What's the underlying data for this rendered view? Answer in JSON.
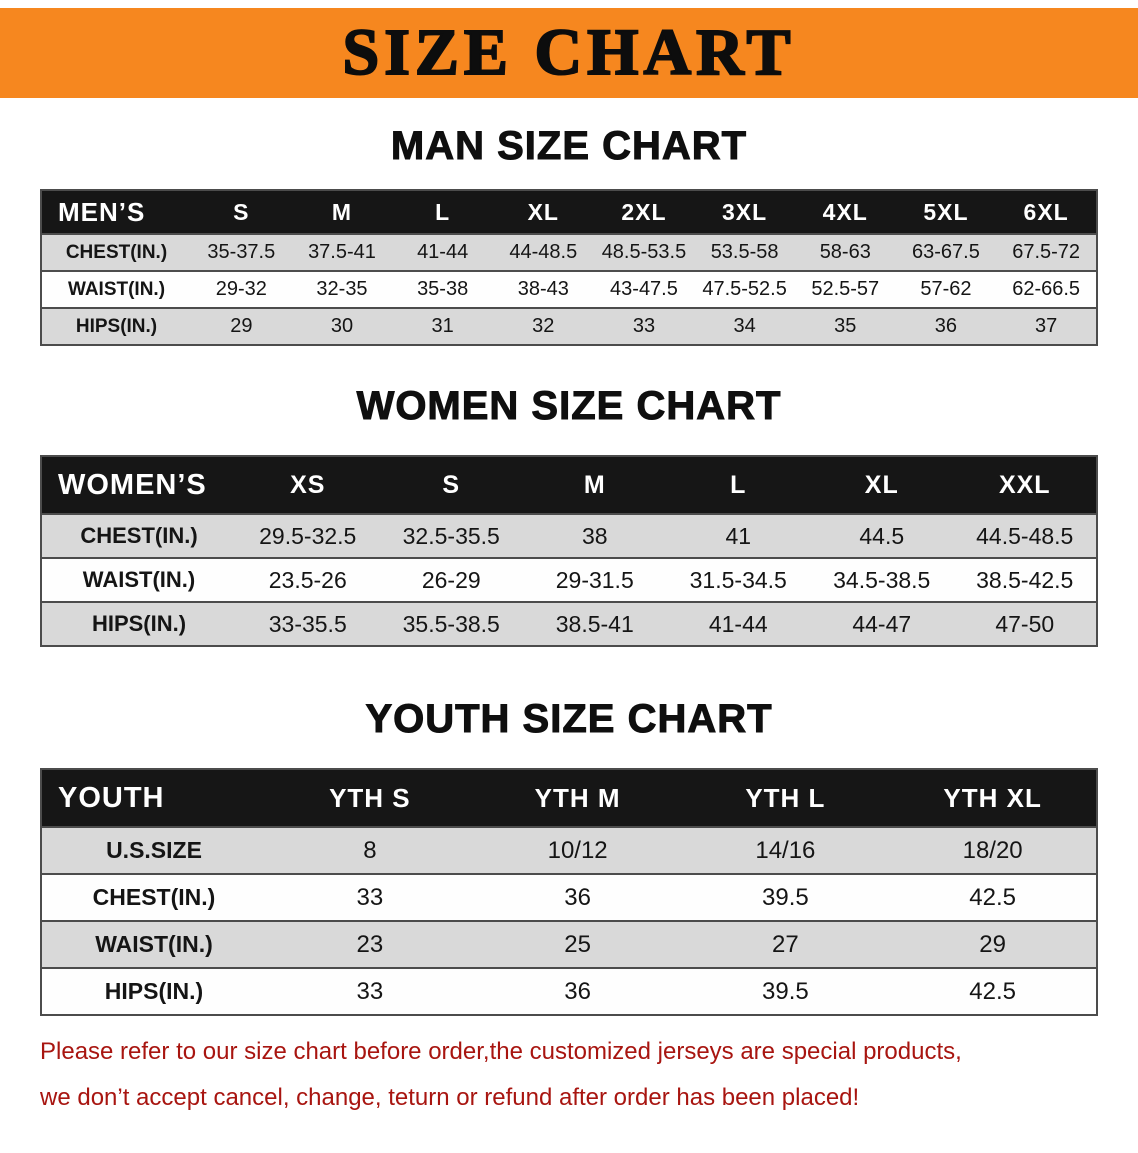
{
  "banner": {
    "title": "SIZE CHART"
  },
  "colors": {
    "banner_bg": "#f6871f",
    "header_bar": "#161616",
    "stripe": "#d9d9d9",
    "disclaimer_text": "#a81510"
  },
  "sections": [
    {
      "id": "men",
      "heading": "MAN SIZE CHART",
      "table": {
        "header": [
          "MEN’S",
          "S",
          "M",
          "L",
          "XL",
          "2XL",
          "3XL",
          "4XL",
          "5XL",
          "6XL"
        ],
        "rows": [
          {
            "label": "CHEST(IN.)",
            "values": [
              "35-37.5",
              "37.5-41",
              "41-44",
              "44-48.5",
              "48.5-53.5",
              "53.5-58",
              "58-63",
              "63-67.5",
              "67.5-72"
            ]
          },
          {
            "label": "WAIST(IN.)",
            "values": [
              "29-32",
              "32-35",
              "35-38",
              "38-43",
              "43-47.5",
              "47.5-52.5",
              "52.5-57",
              "57-62",
              "62-66.5"
            ]
          },
          {
            "label": "HIPS(IN.)",
            "values": [
              "29",
              "30",
              "31",
              "32",
              "33",
              "34",
              "35",
              "36",
              "37"
            ]
          }
        ]
      }
    },
    {
      "id": "women",
      "heading": "WOMEN SIZE CHART",
      "table": {
        "header": [
          "WOMEN’S",
          "XS",
          "S",
          "M",
          "L",
          "XL",
          "XXL"
        ],
        "rows": [
          {
            "label": "CHEST(IN.)",
            "values": [
              "29.5-32.5",
              "32.5-35.5",
              "38",
              "41",
              "44.5",
              "44.5-48.5"
            ]
          },
          {
            "label": "WAIST(IN.)",
            "values": [
              "23.5-26",
              "26-29",
              "29-31.5",
              "31.5-34.5",
              "34.5-38.5",
              "38.5-42.5"
            ]
          },
          {
            "label": "HIPS(IN.)",
            "values": [
              "33-35.5",
              "35.5-38.5",
              "38.5-41",
              "41-44",
              "44-47",
              "47-50"
            ]
          }
        ]
      }
    },
    {
      "id": "youth",
      "heading": "YOUTH SIZE CHART",
      "table": {
        "header": [
          "YOUTH",
          "YTH S",
          "YTH M",
          "YTH L",
          "YTH XL"
        ],
        "rows": [
          {
            "label": "U.S.SIZE",
            "values": [
              "8",
              "10/12",
              "14/16",
              "18/20"
            ]
          },
          {
            "label": "CHEST(IN.)",
            "values": [
              "33",
              "36",
              "39.5",
              "42.5"
            ]
          },
          {
            "label": "WAIST(IN.)",
            "values": [
              "23",
              "25",
              "27",
              "29"
            ]
          },
          {
            "label": "HIPS(IN.)",
            "values": [
              "33",
              "36",
              "39.5",
              "42.5"
            ]
          }
        ]
      }
    }
  ],
  "disclaimer": {
    "line1": "Please refer to our size chart before order,the customized jerseys are special products,",
    "line2": "we don’t accept cancel, change, teturn or refund after order has been placed!"
  }
}
